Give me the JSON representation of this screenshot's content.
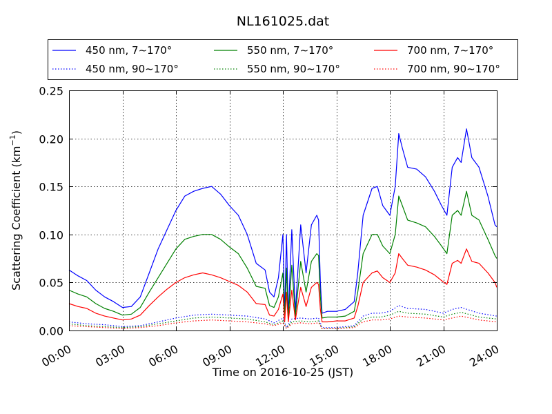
{
  "chart_data": {
    "type": "line",
    "title": "NL161025.dat",
    "xlabel": "Time on 2016-10-25 (JST)",
    "ylabel_main": "Scattering Coefficient (km",
    "ylabel_sup": "−1",
    "ylabel_close": ")",
    "xlim": [
      0,
      24
    ],
    "ylim": [
      0,
      0.25
    ],
    "x_ticks": [
      0,
      3,
      6,
      9,
      12,
      15,
      18,
      21,
      24
    ],
    "x_tick_labels": [
      "00:00",
      "03:00",
      "06:00",
      "09:00",
      "12:00",
      "15:00",
      "18:00",
      "21:00",
      "24:00"
    ],
    "y_ticks": [
      0,
      0.05,
      0.1,
      0.15,
      0.2,
      0.25
    ],
    "y_tick_labels": [
      "0.00",
      "0.05",
      "0.10",
      "0.15",
      "0.20",
      "0.25"
    ],
    "grid": true,
    "legend_position": "top, above plot, 3 columns",
    "series": [
      {
        "name": "450 nm, 7∼170°",
        "color": "#0000ff",
        "style": "solid",
        "x": [
          0,
          0.5,
          1,
          1.5,
          2,
          2.5,
          3,
          3.5,
          4,
          4.5,
          5,
          5.5,
          6,
          6.5,
          7,
          7.5,
          8,
          8.5,
          9,
          9.5,
          10,
          10.5,
          11,
          11.25,
          11.5,
          11.75,
          12,
          12.1,
          12.2,
          12.3,
          12.5,
          12.7,
          13,
          13.3,
          13.6,
          13.9,
          14,
          14.1,
          14.2,
          14.5,
          15,
          15.5,
          16,
          16.2,
          16.5,
          17,
          17.3,
          17.6,
          18,
          18.3,
          18.5,
          18.7,
          19,
          19.5,
          20,
          20.5,
          20.9,
          21.2,
          21.5,
          21.8,
          22,
          22.3,
          22.6,
          23,
          23.5,
          23.9,
          24
        ],
        "y": [
          0.063,
          0.057,
          0.052,
          0.042,
          0.035,
          0.03,
          0.024,
          0.025,
          0.035,
          0.06,
          0.085,
          0.105,
          0.125,
          0.14,
          0.145,
          0.148,
          0.15,
          0.142,
          0.13,
          0.12,
          0.1,
          0.07,
          0.063,
          0.04,
          0.035,
          0.055,
          0.1,
          0.015,
          0.1,
          0.015,
          0.105,
          0.02,
          0.11,
          0.06,
          0.11,
          0.12,
          0.115,
          0.05,
          0.018,
          0.02,
          0.02,
          0.022,
          0.03,
          0.06,
          0.12,
          0.148,
          0.15,
          0.13,
          0.12,
          0.15,
          0.205,
          0.19,
          0.17,
          0.168,
          0.16,
          0.145,
          0.13,
          0.12,
          0.17,
          0.18,
          0.175,
          0.21,
          0.18,
          0.17,
          0.14,
          0.11,
          0.108
        ]
      },
      {
        "name": "550 nm, 7∼170°",
        "color": "#008000",
        "style": "solid",
        "x": [
          0,
          0.5,
          1,
          1.5,
          2,
          2.5,
          3,
          3.5,
          4,
          4.5,
          5,
          5.5,
          6,
          6.5,
          7,
          7.5,
          8,
          8.5,
          9,
          9.5,
          10,
          10.5,
          11,
          11.25,
          11.5,
          11.75,
          12,
          12.1,
          12.2,
          12.3,
          12.5,
          12.7,
          13,
          13.3,
          13.6,
          13.9,
          14,
          14.1,
          14.2,
          14.5,
          15,
          15.5,
          16,
          16.2,
          16.5,
          17,
          17.3,
          17.6,
          18,
          18.3,
          18.5,
          18.7,
          19,
          19.5,
          20,
          20.5,
          20.9,
          21.2,
          21.5,
          21.8,
          22,
          22.3,
          22.6,
          23,
          23.5,
          23.9,
          24
        ],
        "y": [
          0.042,
          0.038,
          0.035,
          0.028,
          0.023,
          0.02,
          0.016,
          0.017,
          0.024,
          0.04,
          0.055,
          0.07,
          0.085,
          0.095,
          0.098,
          0.1,
          0.1,
          0.095,
          0.087,
          0.08,
          0.065,
          0.046,
          0.044,
          0.026,
          0.024,
          0.035,
          0.06,
          0.012,
          0.065,
          0.012,
          0.068,
          0.015,
          0.072,
          0.04,
          0.072,
          0.08,
          0.078,
          0.035,
          0.013,
          0.014,
          0.014,
          0.015,
          0.02,
          0.04,
          0.08,
          0.1,
          0.1,
          0.088,
          0.08,
          0.1,
          0.14,
          0.13,
          0.115,
          0.112,
          0.108,
          0.098,
          0.088,
          0.08,
          0.12,
          0.125,
          0.12,
          0.145,
          0.12,
          0.115,
          0.095,
          0.078,
          0.075
        ]
      },
      {
        "name": "700 nm, 7∼170°",
        "color": "#ff0000",
        "style": "solid",
        "x": [
          0,
          0.5,
          1,
          1.5,
          2,
          2.5,
          3,
          3.5,
          4,
          4.5,
          5,
          5.5,
          6,
          6.5,
          7,
          7.5,
          8,
          8.5,
          9,
          9.5,
          10,
          10.5,
          11,
          11.25,
          11.5,
          11.75,
          12,
          12.1,
          12.2,
          12.3,
          12.5,
          12.7,
          13,
          13.3,
          13.6,
          13.9,
          14,
          14.1,
          14.2,
          14.5,
          15,
          15.5,
          16,
          16.2,
          16.5,
          17,
          17.3,
          17.6,
          18,
          18.3,
          18.5,
          18.7,
          19,
          19.5,
          20,
          20.5,
          20.9,
          21.2,
          21.5,
          21.8,
          22,
          22.3,
          22.6,
          23,
          23.5,
          23.9,
          24
        ],
        "y": [
          0.028,
          0.025,
          0.023,
          0.018,
          0.015,
          0.013,
          0.011,
          0.012,
          0.016,
          0.026,
          0.035,
          0.043,
          0.05,
          0.055,
          0.058,
          0.06,
          0.058,
          0.055,
          0.051,
          0.047,
          0.04,
          0.028,
          0.027,
          0.016,
          0.015,
          0.022,
          0.038,
          0.009,
          0.04,
          0.009,
          0.042,
          0.011,
          0.045,
          0.025,
          0.045,
          0.05,
          0.048,
          0.022,
          0.009,
          0.009,
          0.01,
          0.01,
          0.013,
          0.025,
          0.05,
          0.06,
          0.062,
          0.055,
          0.05,
          0.06,
          0.08,
          0.075,
          0.068,
          0.066,
          0.063,
          0.058,
          0.052,
          0.048,
          0.07,
          0.073,
          0.07,
          0.085,
          0.072,
          0.07,
          0.06,
          0.05,
          0.045
        ]
      },
      {
        "name": "450 nm, 90∼170°",
        "color": "#0000ff",
        "style": "dotted",
        "x": [
          0,
          1,
          2,
          3,
          4,
          5,
          6,
          7,
          8,
          9,
          10,
          11,
          11.5,
          12,
          12.2,
          12.5,
          13,
          13.5,
          14,
          14.2,
          15,
          16,
          16.5,
          17,
          17.5,
          18,
          18.5,
          19,
          20,
          21,
          21.5,
          22,
          23,
          24
        ],
        "y": [
          0.009,
          0.007,
          0.006,
          0.004,
          0.005,
          0.009,
          0.013,
          0.016,
          0.017,
          0.016,
          0.015,
          0.012,
          0.008,
          0.013,
          0.003,
          0.012,
          0.013,
          0.012,
          0.013,
          0.003,
          0.003,
          0.005,
          0.015,
          0.018,
          0.018,
          0.02,
          0.026,
          0.023,
          0.022,
          0.018,
          0.022,
          0.024,
          0.018,
          0.015
        ]
      },
      {
        "name": "550 nm, 90∼170°",
        "color": "#008000",
        "style": "dotted",
        "x": [
          0,
          1,
          2,
          3,
          4,
          5,
          6,
          7,
          8,
          9,
          10,
          11,
          11.5,
          12,
          12.2,
          12.5,
          13,
          13.5,
          14,
          14.2,
          15,
          16,
          16.5,
          17,
          17.5,
          18,
          18.5,
          19,
          20,
          21,
          21.5,
          22,
          23,
          24
        ],
        "y": [
          0.007,
          0.005,
          0.004,
          0.003,
          0.004,
          0.007,
          0.01,
          0.013,
          0.014,
          0.013,
          0.012,
          0.009,
          0.006,
          0.01,
          0.002,
          0.009,
          0.01,
          0.009,
          0.01,
          0.002,
          0.002,
          0.004,
          0.012,
          0.014,
          0.014,
          0.016,
          0.02,
          0.018,
          0.017,
          0.014,
          0.017,
          0.019,
          0.014,
          0.012
        ]
      },
      {
        "name": "700 nm, 90∼170°",
        "color": "#ff0000",
        "style": "dotted",
        "x": [
          0,
          1,
          2,
          3,
          4,
          5,
          6,
          7,
          8,
          9,
          10,
          11,
          11.5,
          12,
          12.2,
          12.5,
          13,
          13.5,
          14,
          14.2,
          15,
          16,
          16.5,
          17,
          17.5,
          18,
          18.5,
          19,
          20,
          21,
          21.5,
          22,
          23,
          24
        ],
        "y": [
          0.005,
          0.004,
          0.003,
          0.002,
          0.003,
          0.005,
          0.008,
          0.01,
          0.011,
          0.01,
          0.009,
          0.007,
          0.005,
          0.008,
          0.002,
          0.007,
          0.008,
          0.007,
          0.008,
          0.002,
          0.002,
          0.003,
          0.009,
          0.011,
          0.011,
          0.012,
          0.015,
          0.014,
          0.013,
          0.011,
          0.013,
          0.015,
          0.011,
          0.009
        ]
      }
    ]
  }
}
